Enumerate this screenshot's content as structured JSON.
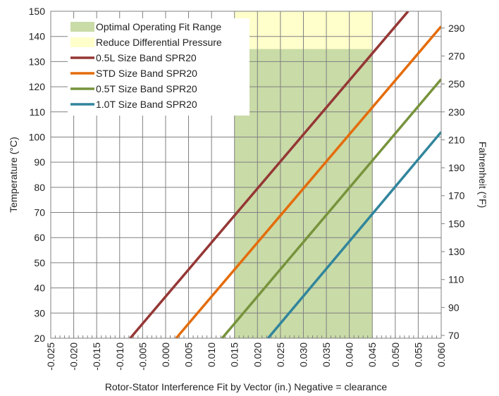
{
  "chart_data": {
    "type": "line",
    "title": "",
    "xlabel": "Rotor-Stator Interference Fit by Vector (in.) Negative = clearance",
    "ylabel": "Temperature (°C)",
    "y2label": "Fahrenheit (°F)",
    "xlim": [
      -0.025,
      0.06
    ],
    "ylim": [
      20,
      150
    ],
    "y2lim": [
      68,
      302
    ],
    "x_ticks": [
      "-0.025",
      "-0.020",
      "-0.015",
      "-0.010",
      "-0.005",
      "0.000",
      "0.005",
      "0.010",
      "0.015",
      "0.020",
      "0.025",
      "0.030",
      "0.035",
      "0.040",
      "0.045",
      "0.050",
      "0.055",
      "0.060"
    ],
    "y_ticks": [
      "20",
      "30",
      "40",
      "50",
      "60",
      "70",
      "80",
      "90",
      "100",
      "110",
      "120",
      "130",
      "140",
      "150"
    ],
    "y2_ticks": [
      "70",
      "90",
      "110",
      "130",
      "150",
      "170",
      "190",
      "210",
      "230",
      "250",
      "270",
      "290"
    ],
    "grid": true,
    "legend_position": "top-left",
    "regions": [
      {
        "name": "Optimal Operating Fit Range",
        "x": [
          0.015,
          0.045
        ],
        "y": [
          20,
          135
        ],
        "color": "#c9dba7"
      },
      {
        "name": "Reduce Differential Pressure",
        "x": [
          0.015,
          0.045
        ],
        "y": [
          135,
          150
        ],
        "color": "#ffffcc"
      }
    ],
    "series": [
      {
        "name": "0.5L Size Band SPR20",
        "color": "#953735",
        "x": [
          -0.0077,
          0.0528
        ],
        "y": [
          20,
          150
        ]
      },
      {
        "name": "STD Size Band SPR20",
        "color": "#e46c0a",
        "x": [
          0.0023,
          0.06
        ],
        "y": [
          20,
          144
        ]
      },
      {
        "name": "0.5T Size Band SPR20",
        "color": "#77933c",
        "x": [
          0.0123,
          0.06
        ],
        "y": [
          20,
          123
        ]
      },
      {
        "name": "1.0T Size Band SPR20",
        "color": "#31859c",
        "x": [
          0.0223,
          0.06
        ],
        "y": [
          20,
          102
        ]
      }
    ]
  }
}
